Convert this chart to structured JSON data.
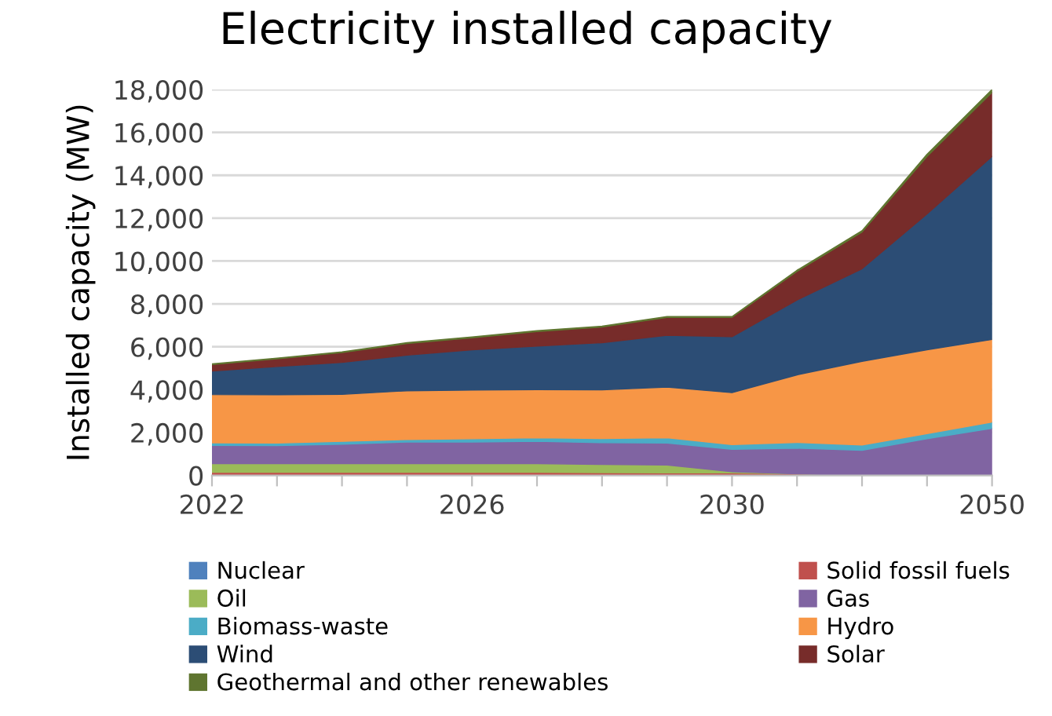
{
  "chart_data": {
    "type": "area",
    "stacked": true,
    "title": "Electricity installed capacity",
    "ylabel": "Installed capacity (MW)",
    "categories": [
      "2022",
      null,
      null,
      null,
      "2026",
      null,
      null,
      null,
      "2030",
      null,
      null,
      null,
      "2050"
    ],
    "ylim": [
      0,
      18000
    ],
    "yticks": [
      {
        "value": 0,
        "label": "0"
      },
      {
        "value": 2000,
        "label": "2,000"
      },
      {
        "value": 4000,
        "label": "4,000"
      },
      {
        "value": 6000,
        "label": "6,000"
      },
      {
        "value": 8000,
        "label": "8,000"
      },
      {
        "value": 10000,
        "label": "10,000"
      },
      {
        "value": 12000,
        "label": "12,000"
      },
      {
        "value": 14000,
        "label": "14,000"
      },
      {
        "value": 16000,
        "label": "16,000"
      },
      {
        "value": 18000,
        "label": "18,000"
      }
    ],
    "grid": "y",
    "legend": "bottom",
    "series": [
      {
        "name": "Nuclear",
        "color": "#4f81bd",
        "values": [
          null,
          null,
          null,
          null,
          null,
          null,
          null,
          null,
          null,
          null,
          null,
          null,
          null
        ]
      },
      {
        "name": "Solid fossil fuels",
        "color": "#c0504d",
        "values": [
          150,
          150,
          150,
          150,
          150,
          150,
          130,
          120,
          120,
          70,
          0,
          0,
          0
        ]
      },
      {
        "name": "Oil",
        "color": "#9bbb59",
        "values": [
          400,
          400,
          400,
          400,
          400,
          400,
          380,
          370,
          50,
          0,
          0,
          0,
          0
        ]
      },
      {
        "name": "Gas",
        "color": "#8064a2",
        "values": [
          850,
          840,
          910,
          1010,
          1010,
          1040,
          1020,
          1020,
          1050,
          1200,
          1170,
          1710,
          2200
        ]
      },
      {
        "name": "Biomass-waste",
        "color": "#4bacc6",
        "values": [
          120,
          120,
          130,
          120,
          150,
          170,
          190,
          250,
          220,
          270,
          250,
          240,
          290
        ]
      },
      {
        "name": "Hydro",
        "color": "#f79646",
        "values": [
          2250,
          2250,
          2190,
          2270,
          2270,
          2240,
          2270,
          2360,
          2420,
          3150,
          3900,
          3910,
          3850
        ]
      },
      {
        "name": "Wind",
        "color": "#2c4d75",
        "values": [
          1100,
          1320,
          1490,
          1660,
          1880,
          2030,
          2200,
          2420,
          2610,
          3490,
          4320,
          6340,
          8540
        ]
      },
      {
        "name": "Solar",
        "color": "#772c2a",
        "values": [
          300,
          360,
          460,
          540,
          560,
          680,
          730,
          830,
          900,
          1340,
          1710,
          2680,
          2990
        ]
      },
      {
        "name": "Geothermal and other renewables",
        "color": "#5f7530",
        "values": [
          30,
          30,
          30,
          40,
          40,
          40,
          40,
          40,
          40,
          50,
          60,
          100,
          130
        ]
      }
    ]
  }
}
